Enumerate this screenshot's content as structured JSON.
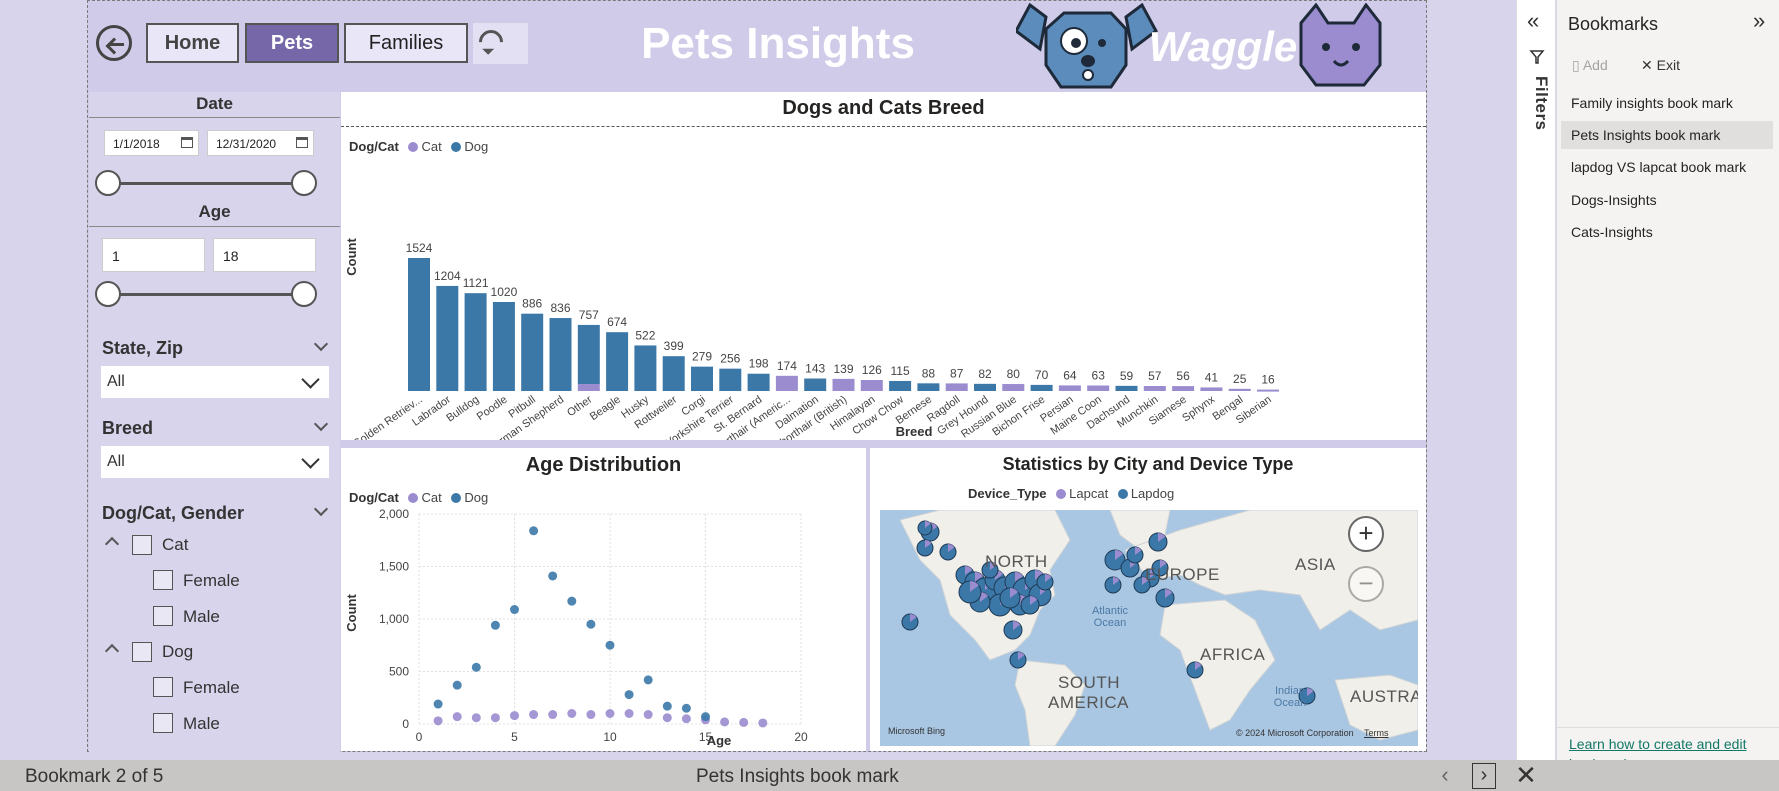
{
  "nav": {
    "home": "Home",
    "pets": "Pets",
    "families": "Families"
  },
  "report_title": "Pets Insights",
  "logo_text": "Waggle",
  "slicers": {
    "date": {
      "title": "Date",
      "start": "1/1/2018",
      "end": "12/31/2020"
    },
    "age": {
      "title": "Age",
      "min": "1",
      "max": "18"
    },
    "state_zip": {
      "title": "State, Zip",
      "value": "All"
    },
    "breed": {
      "title": "Breed",
      "value": "All"
    },
    "gender": {
      "title": "Dog/Cat, Gender",
      "groups": [
        {
          "label": "Cat",
          "children": [
            "Female",
            "Male"
          ]
        },
        {
          "label": "Dog",
          "children": [
            "Female",
            "Male"
          ]
        }
      ]
    }
  },
  "colors": {
    "cat": "#9a8ccf",
    "dog": "#3b78a8",
    "lapcat": "#9a8ccf",
    "lapdog": "#3b78a8"
  },
  "breed_chart": {
    "title": "Dogs and Cats Breed",
    "legend_title": "Dog/Cat",
    "legend": [
      "Cat",
      "Dog"
    ],
    "xlabel": "Breed",
    "ylabel": "Count"
  },
  "age_chart": {
    "title": "Age Distribution",
    "legend_title": "Dog/Cat",
    "legend": [
      "Cat",
      "Dog"
    ],
    "xlabel": "Age",
    "ylabel": "Count"
  },
  "map_chart": {
    "title": "Statistics by City and Device Type",
    "legend_title": "Device_Type",
    "legend": [
      "Lapcat",
      "Lapdog"
    ],
    "labels": {
      "na": "NORTH",
      "eu": "EUROPE",
      "asia": "ASIA",
      "africa": "AFRICA",
      "sa1": "SOUTH",
      "sa2": "AMERICA",
      "aus": "AUSTRALI",
      "atlantic": "Atlantic Ocean",
      "indian": "Indian Ocean"
    },
    "bing": "Microsoft Bing",
    "copyright": "© 2024 Microsoft Corporation",
    "terms": "Terms",
    "zoom_in": "+",
    "zoom_out": "−"
  },
  "chart_data": [
    {
      "type": "bar",
      "title": "Dogs and Cats Breed",
      "xlabel": "Breed",
      "ylabel": "Count",
      "categories": [
        "Golden Retriev...",
        "Labrador",
        "Bulldog",
        "Poodle",
        "Pitbull",
        "German Shepherd",
        "Other",
        "Beagle",
        "Husky",
        "Rottweiler",
        "Corgi",
        "Yorkshire Terrier",
        "St. Bernard",
        "Shorthair (Americ...",
        "Dalmation",
        "Shorthair (British)",
        "Himalayan",
        "Chow Chow",
        "Bernese",
        "Ragdoll",
        "Grey Hound",
        "Russian Blue",
        "Bichon Frise",
        "Persian",
        "Maine Coon",
        "Dachsund",
        "Munchkin",
        "Siamese",
        "Sphynx",
        "Bengal",
        "Siberian"
      ],
      "totals": [
        1524,
        1204,
        1121,
        1020,
        886,
        836,
        757,
        674,
        522,
        399,
        279,
        256,
        198,
        174,
        143,
        139,
        126,
        115,
        88,
        87,
        82,
        80,
        70,
        64,
        63,
        59,
        57,
        56,
        41,
        25,
        16
      ],
      "series": [
        {
          "name": "Cat",
          "values": [
            0,
            0,
            0,
            0,
            0,
            0,
            80,
            0,
            0,
            0,
            0,
            0,
            0,
            174,
            0,
            139,
            126,
            0,
            0,
            87,
            0,
            80,
            0,
            64,
            63,
            0,
            57,
            56,
            41,
            25,
            16
          ]
        },
        {
          "name": "Dog",
          "values": [
            1524,
            1204,
            1121,
            1020,
            886,
            836,
            677,
            674,
            522,
            399,
            279,
            256,
            198,
            0,
            143,
            0,
            0,
            115,
            88,
            0,
            82,
            0,
            70,
            0,
            0,
            59,
            0,
            0,
            0,
            0,
            0
          ]
        }
      ]
    },
    {
      "type": "scatter",
      "title": "Age Distribution",
      "xlabel": "Age",
      "ylabel": "Count",
      "xlim": [
        0,
        20
      ],
      "ylim": [
        0,
        2000
      ],
      "x_ticks": [
        0,
        5,
        10,
        15,
        20
      ],
      "y_ticks": [
        0,
        500,
        1000,
        1500,
        2000
      ],
      "y_tick_labels": [
        "0",
        "500",
        "1,000",
        "1,500",
        "2,000"
      ],
      "series": [
        {
          "name": "Cat",
          "points": [
            [
              1,
              30
            ],
            [
              2,
              70
            ],
            [
              3,
              60
            ],
            [
              4,
              60
            ],
            [
              5,
              80
            ],
            [
              6,
              90
            ],
            [
              7,
              90
            ],
            [
              8,
              100
            ],
            [
              9,
              90
            ],
            [
              10,
              100
            ],
            [
              11,
              100
            ],
            [
              12,
              90
            ],
            [
              13,
              60
            ],
            [
              14,
              50
            ],
            [
              15,
              40
            ],
            [
              16,
              20
            ],
            [
              17,
              15
            ],
            [
              18,
              10
            ]
          ]
        },
        {
          "name": "Dog",
          "points": [
            [
              1,
              190
            ],
            [
              2,
              370
            ],
            [
              3,
              540
            ],
            [
              4,
              940
            ],
            [
              5,
              1090
            ],
            [
              6,
              1840
            ],
            [
              7,
              1410
            ],
            [
              8,
              1170
            ],
            [
              9,
              950
            ],
            [
              10,
              750
            ],
            [
              11,
              280
            ],
            [
              12,
              420
            ],
            [
              13,
              170
            ],
            [
              14,
              150
            ],
            [
              15,
              70
            ]
          ]
        }
      ],
      "grid": true
    }
  ],
  "filters_label": "Filters",
  "bookmarks": {
    "title": "Bookmarks",
    "add": "Add",
    "exit": "Exit",
    "items": [
      "Family insights book mark",
      "Pets Insights book mark",
      "lapdog VS lapcat book mark",
      "Dogs-Insights",
      "Cats-Insights"
    ],
    "link": "Learn how to create and edit bookmarks"
  },
  "bookmark_bar": {
    "position": "Bookmark 2 of 5",
    "current": "Pets Insights book mark"
  }
}
